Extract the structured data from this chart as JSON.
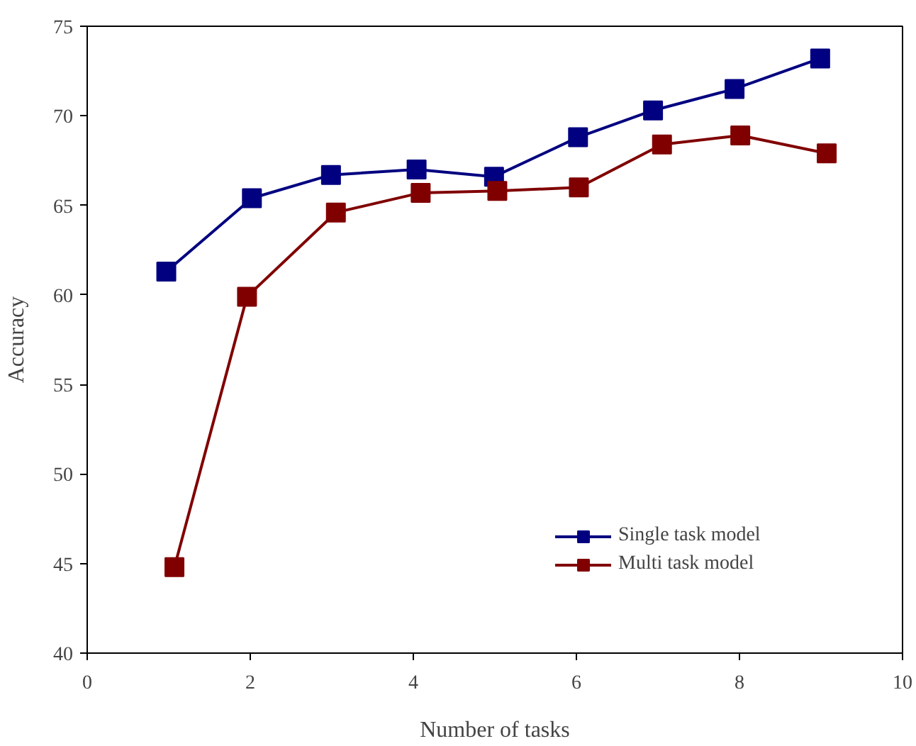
{
  "chart_data": {
    "type": "line",
    "xlabel": "Number of tasks",
    "ylabel": "Accuracy",
    "xlim": [
      0,
      10
    ],
    "xticks": [
      0,
      2,
      4,
      6,
      8,
      10
    ],
    "ylim": [
      40,
      75
    ],
    "yticks": [
      40,
      45,
      50,
      55,
      60,
      65,
      70,
      75
    ],
    "grid": false,
    "legend": "bottom right",
    "marker": "square",
    "line_style": "solid",
    "series": [
      {
        "name": "Single task model",
        "color": "#000080",
        "x": [
          0.97,
          2.02,
          2.99,
          4.04,
          4.99,
          6.02,
          6.94,
          7.94,
          8.99
        ],
        "values": [
          61.3,
          65.4,
          66.7,
          67.0,
          66.6,
          68.8,
          70.3,
          71.5,
          73.2
        ]
      },
      {
        "name": "Multi task model",
        "color": "#800000",
        "x": [
          1.07,
          1.96,
          3.05,
          4.09,
          5.03,
          6.03,
          7.05,
          8.01,
          9.07
        ],
        "values": [
          44.8,
          59.9,
          64.6,
          65.7,
          65.8,
          66.0,
          68.4,
          68.9,
          67.9
        ]
      }
    ]
  }
}
